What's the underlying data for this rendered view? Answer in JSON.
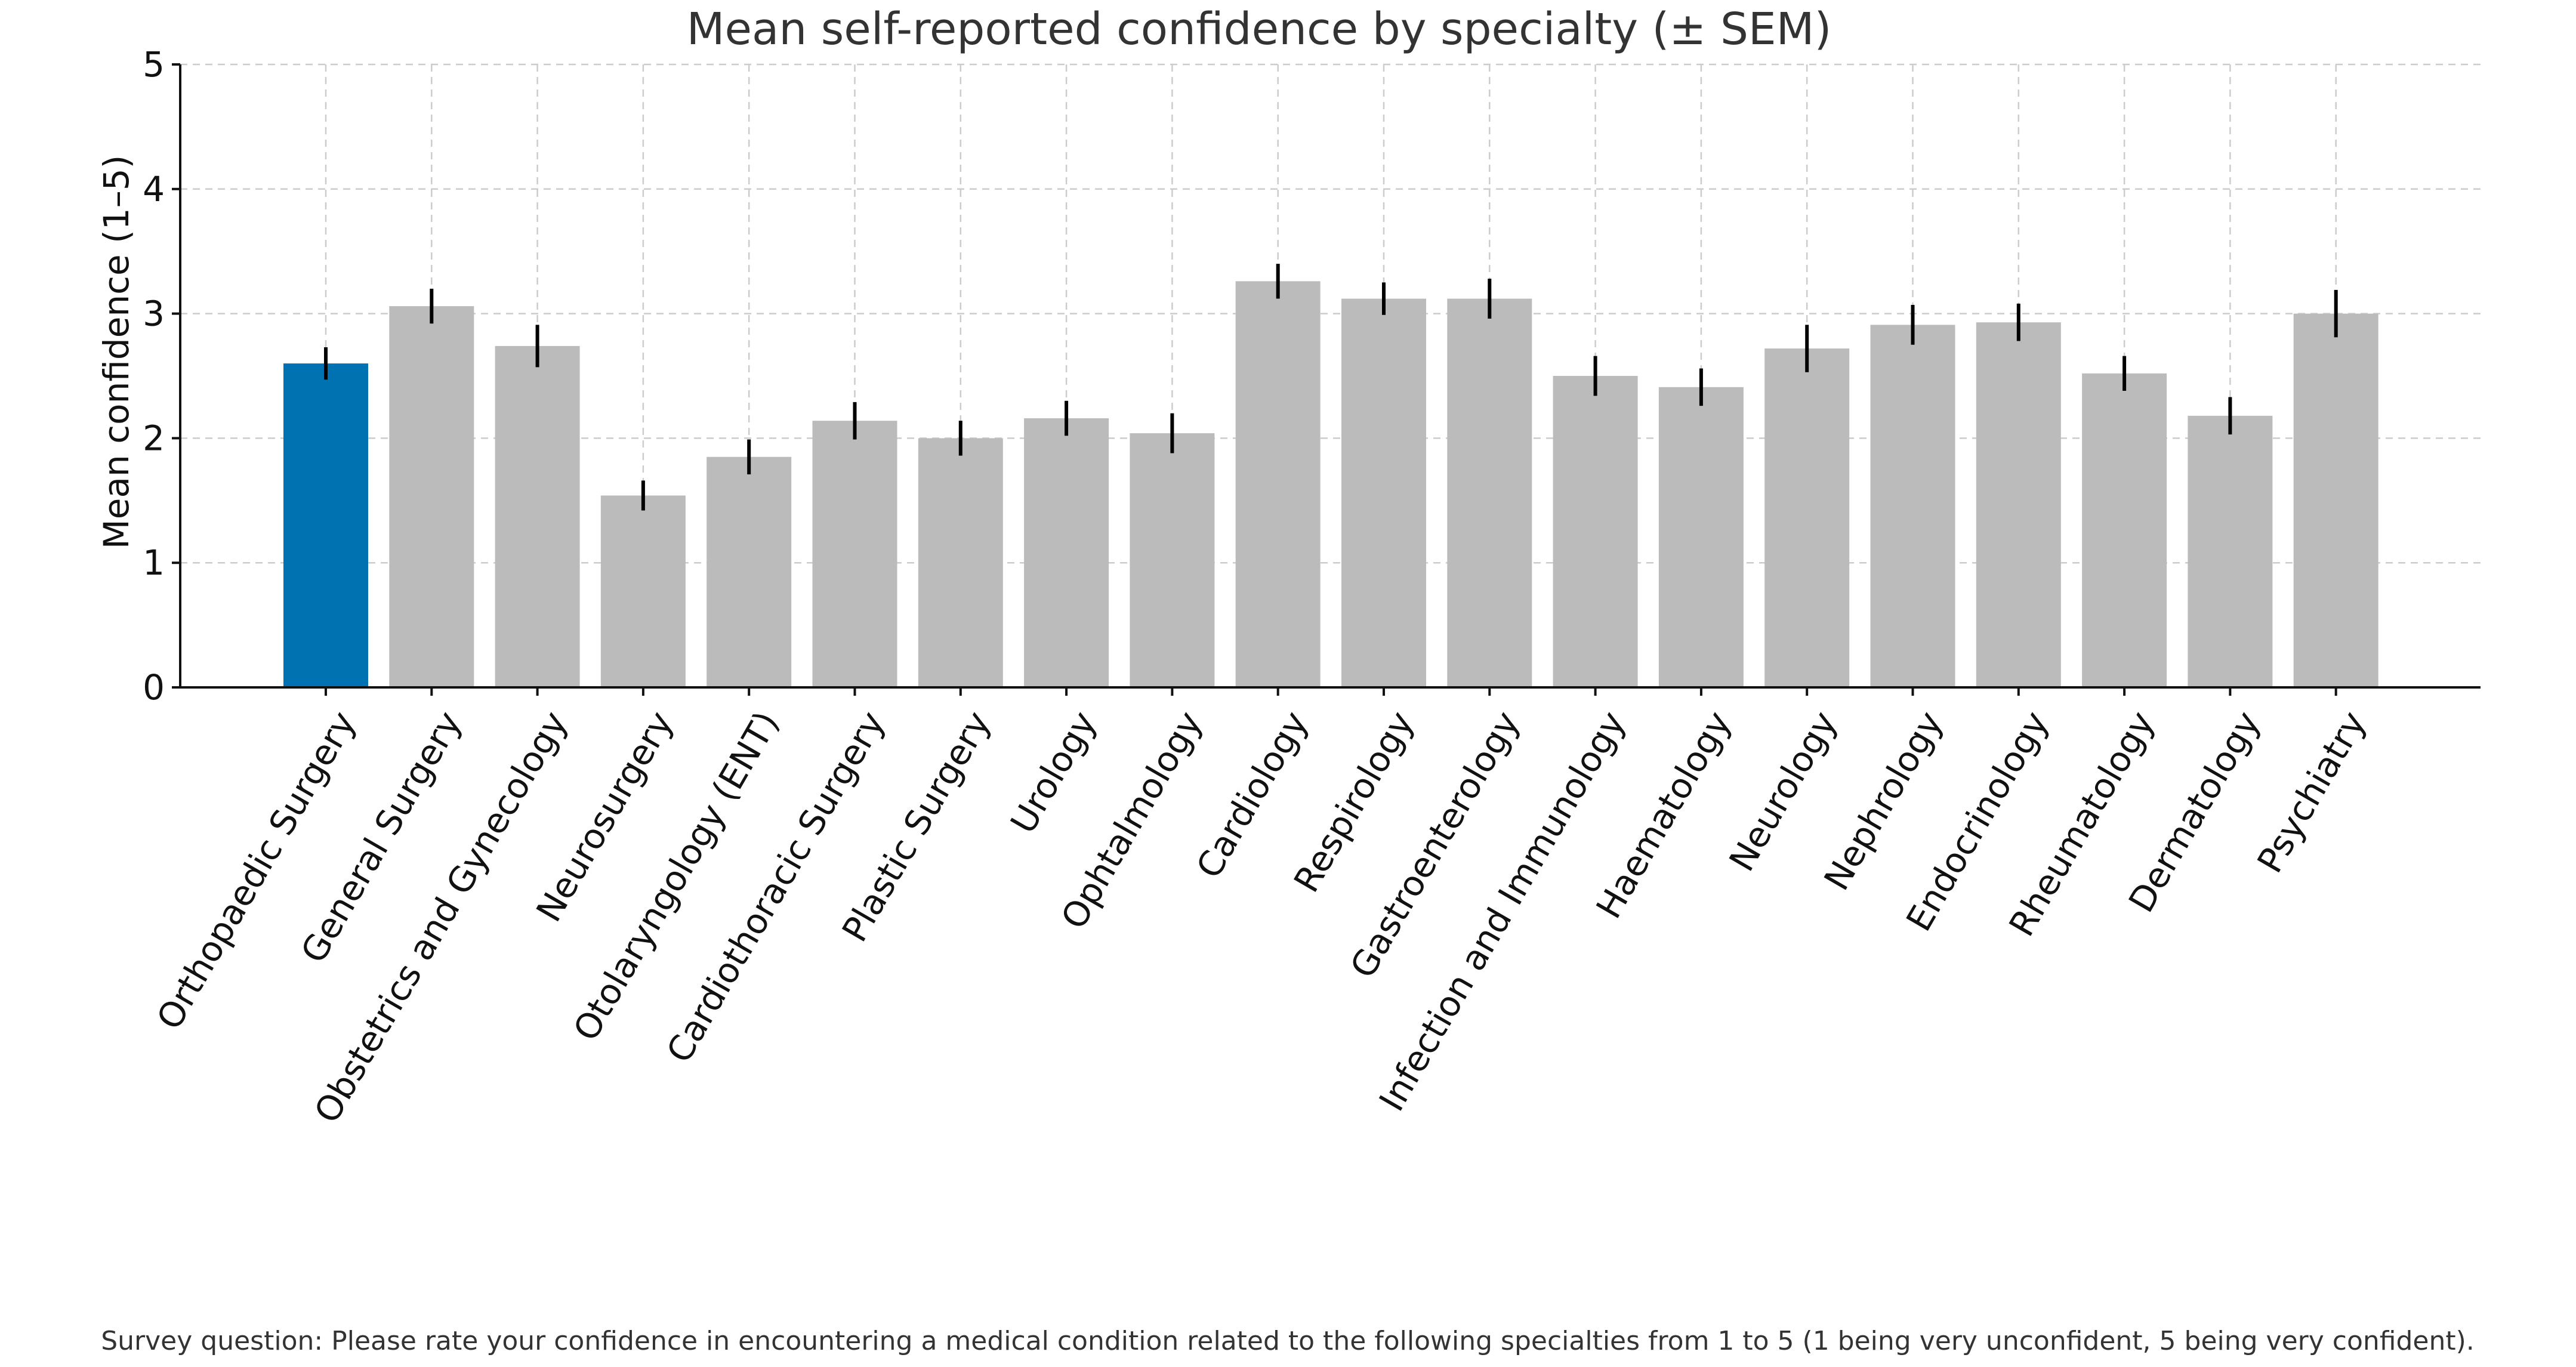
{
  "chart_data": {
    "type": "bar",
    "title": "Mean self-reported confidence by specialty (± SEM)",
    "xlabel": "",
    "ylabel": "Mean confidence (1–5)",
    "ylim": [
      0,
      5
    ],
    "yticks": [
      "0",
      "1",
      "2",
      "3",
      "4",
      "5"
    ],
    "grid": true,
    "categories": [
      "Orthopaedic Surgery",
      "General Surgery",
      "Obstetrics and Gynecology",
      "Neurosurgery",
      "Otolaryngology (ENT)",
      "Cardiothoracic Surgery",
      "Plastic Surgery",
      "Urology",
      "Ophtalmology",
      "Cardiology",
      "Respirology",
      "Gastroenterology",
      "Infection and Immunology",
      "Haematology",
      "Neurology",
      "Nephrology",
      "Endocrinology",
      "Rheumatology",
      "Dermatology",
      "Psychiatry"
    ],
    "values": [
      2.6,
      3.06,
      2.74,
      1.54,
      1.85,
      2.14,
      2.0,
      2.16,
      2.04,
      3.26,
      3.12,
      3.12,
      2.5,
      2.41,
      2.72,
      2.91,
      2.93,
      2.52,
      2.18,
      3.0
    ],
    "errors": [
      0.13,
      0.14,
      0.17,
      0.12,
      0.14,
      0.15,
      0.14,
      0.14,
      0.16,
      0.14,
      0.13,
      0.16,
      0.16,
      0.15,
      0.19,
      0.16,
      0.15,
      0.14,
      0.15,
      0.19
    ],
    "highlight_index": 0,
    "colors": {
      "highlight": "#0072B2",
      "default": "#BBBBBB",
      "error": "#000000"
    },
    "footnote": "Survey question: Please rate your confidence in encountering a medical condition related to the following specialties from 1 to 5 (1 being very unconfident, 5 being very confident)."
  }
}
